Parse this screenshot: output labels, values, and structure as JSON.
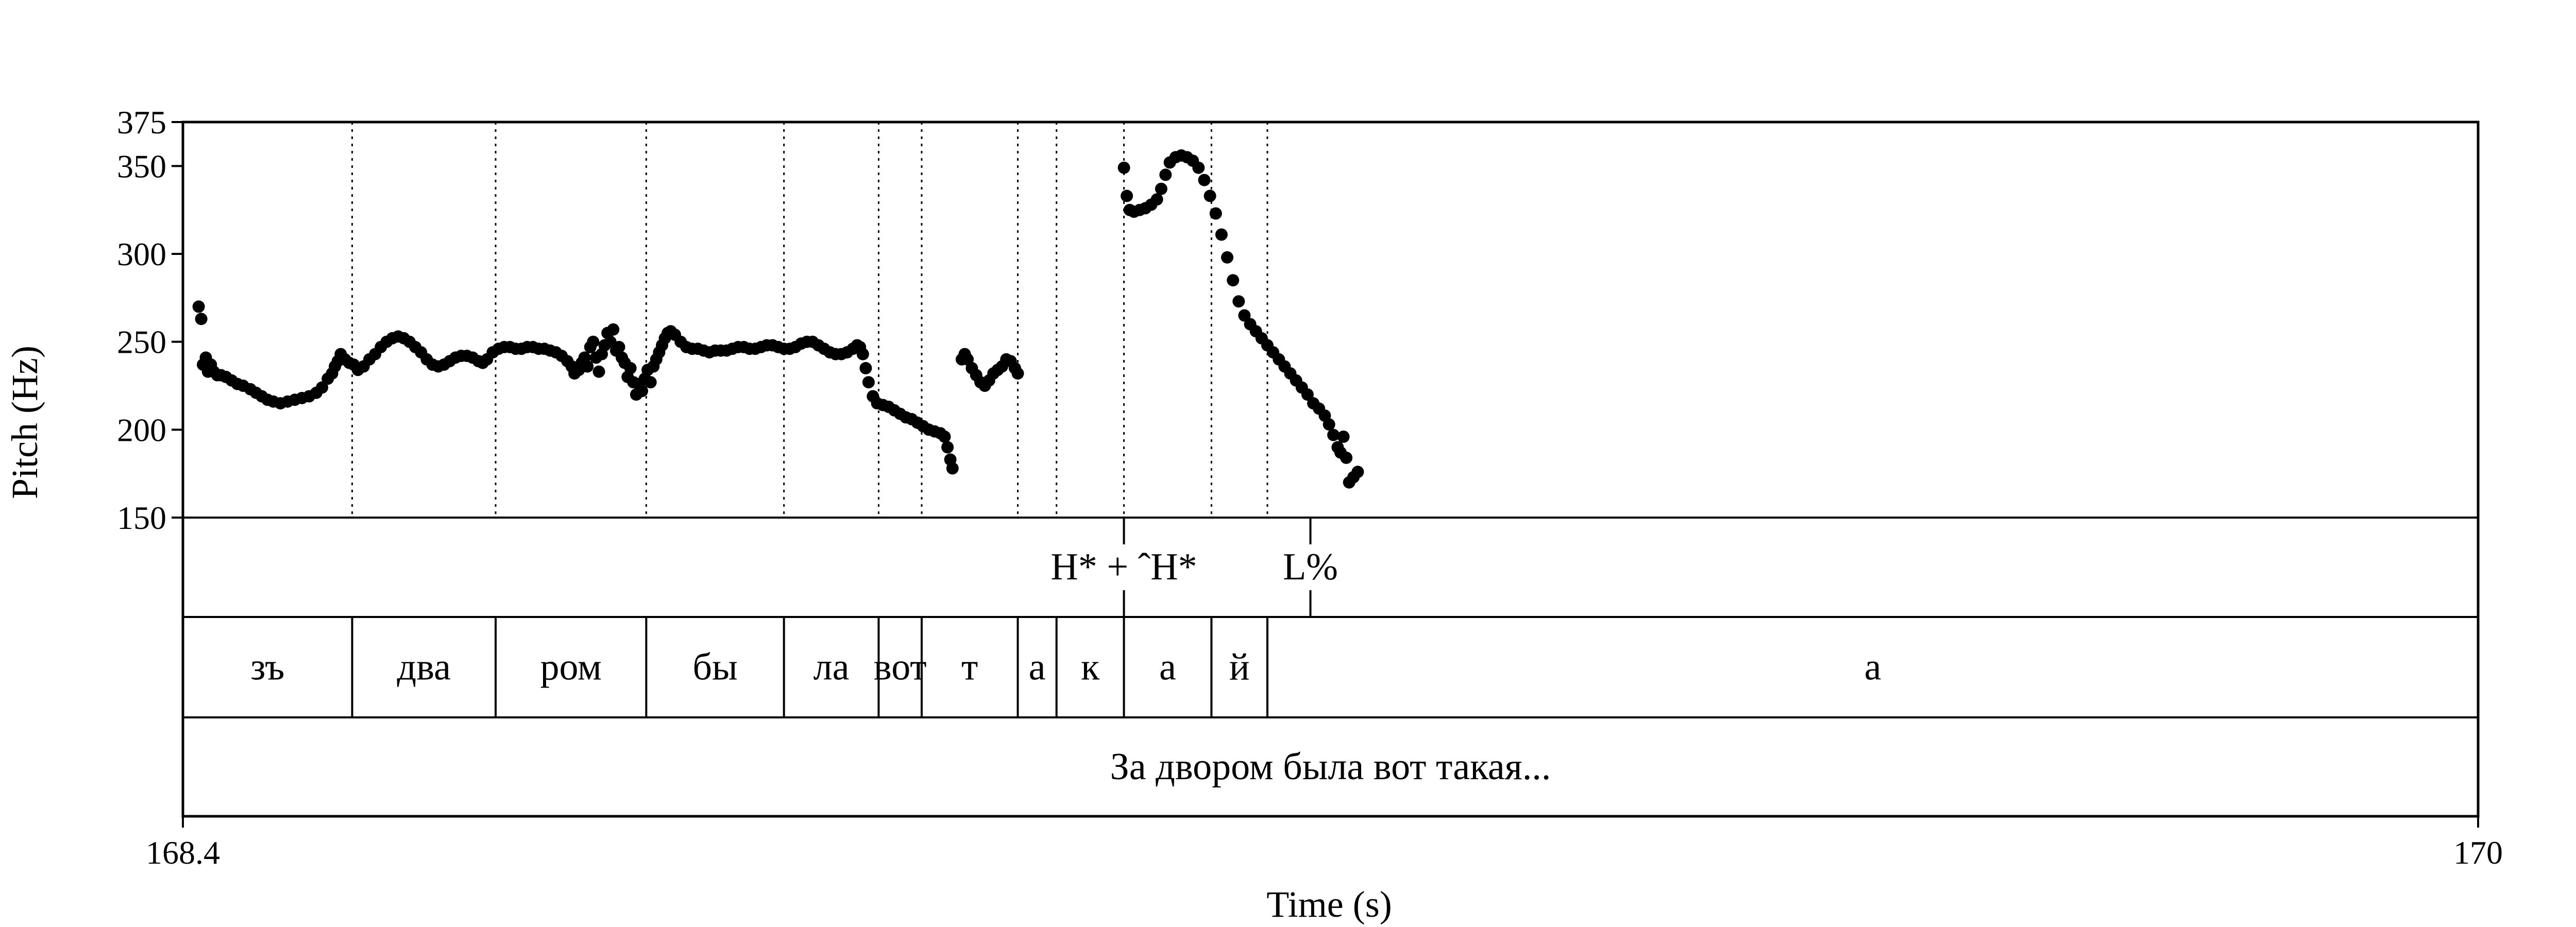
{
  "chart_data": {
    "type": "scatter",
    "xlabel": "Time (s)",
    "ylabel": "Pitch (Hz)",
    "xlim": [
      168.4,
      170
    ],
    "ylim": [
      150,
      375
    ],
    "x_ticks": [
      {
        "value": 168.4,
        "label": "168.4"
      },
      {
        "value": 170,
        "label": "170"
      }
    ],
    "y_ticks": [
      {
        "value": 150,
        "label": "150"
      },
      {
        "value": 200,
        "label": "200"
      },
      {
        "value": 250,
        "label": "250"
      },
      {
        "value": 300,
        "label": "300"
      },
      {
        "value": 350,
        "label": "350"
      },
      {
        "value": 375,
        "label": "375"
      }
    ],
    "pitch_track": [
      [
        168.411,
        270
      ],
      [
        168.4128,
        263
      ],
      [
        168.414,
        237
      ],
      [
        168.416,
        241
      ],
      [
        168.4175,
        233
      ],
      [
        168.4195,
        237
      ],
      [
        168.4215,
        233
      ],
      [
        168.424,
        231
      ],
      [
        168.4265,
        231
      ],
      [
        168.43,
        230
      ],
      [
        168.434,
        228
      ],
      [
        168.438,
        226
      ],
      [
        168.442,
        225
      ],
      [
        168.447,
        223
      ],
      [
        168.451,
        221
      ],
      [
        168.455,
        219
      ],
      [
        168.459,
        217
      ],
      [
        168.463,
        216
      ],
      [
        168.468,
        215
      ],
      [
        168.473,
        216
      ],
      [
        168.478,
        217
      ],
      [
        168.483,
        218
      ],
      [
        168.488,
        219
      ],
      [
        168.493,
        221
      ],
      [
        168.497,
        224
      ],
      [
        168.501,
        229
      ],
      [
        168.504,
        232
      ],
      [
        168.506,
        236
      ],
      [
        168.508,
        239
      ],
      [
        168.51,
        243
      ],
      [
        168.513,
        240
      ],
      [
        168.516,
        238
      ],
      [
        168.519,
        237
      ],
      [
        168.522,
        234
      ],
      [
        168.526,
        236
      ],
      [
        168.53,
        240
      ],
      [
        168.534,
        243
      ],
      [
        168.538,
        247
      ],
      [
        168.542,
        250
      ],
      [
        168.546,
        252
      ],
      [
        168.55,
        253
      ],
      [
        168.554,
        252
      ],
      [
        168.558,
        250
      ],
      [
        168.562,
        247
      ],
      [
        168.566,
        244
      ],
      [
        168.57,
        240
      ],
      [
        168.574,
        237
      ],
      [
        168.578,
        236
      ],
      [
        168.582,
        237
      ],
      [
        168.586,
        239
      ],
      [
        168.59,
        241
      ],
      [
        168.594,
        242
      ],
      [
        168.598,
        242
      ],
      [
        168.602,
        241
      ],
      [
        168.606,
        239
      ],
      [
        168.609,
        238
      ],
      [
        168.612,
        240
      ],
      [
        168.616,
        244
      ],
      [
        168.62,
        246
      ],
      [
        168.624,
        247
      ],
      [
        168.628,
        247
      ],
      [
        168.632,
        246
      ],
      [
        168.636,
        246
      ],
      [
        168.64,
        247
      ],
      [
        168.644,
        247
      ],
      [
        168.648,
        246
      ],
      [
        168.652,
        246
      ],
      [
        168.656,
        245
      ],
      [
        168.66,
        244
      ],
      [
        168.664,
        242
      ],
      [
        168.668,
        239
      ],
      [
        168.671,
        236
      ],
      [
        168.673,
        232
      ],
      [
        168.676,
        234
      ],
      [
        168.678,
        238
      ],
      [
        168.68,
        241
      ],
      [
        168.682,
        236
      ],
      [
        168.684,
        247
      ],
      [
        168.686,
        250
      ],
      [
        168.688,
        241
      ],
      [
        168.69,
        233
      ],
      [
        168.692,
        243
      ],
      [
        168.694,
        248
      ],
      [
        168.696,
        255
      ],
      [
        168.698,
        250
      ],
      [
        168.7,
        257
      ],
      [
        168.702,
        245
      ],
      [
        168.704,
        247
      ],
      [
        168.706,
        241
      ],
      [
        168.708,
        238
      ],
      [
        168.71,
        230
      ],
      [
        168.712,
        235
      ],
      [
        168.714,
        227
      ],
      [
        168.716,
        220
      ],
      [
        168.718,
        226
      ],
      [
        168.72,
        222
      ],
      [
        168.722,
        229
      ],
      [
        168.724,
        234
      ],
      [
        168.726,
        227
      ],
      [
        168.728,
        236
      ],
      [
        168.73,
        240
      ],
      [
        168.732,
        244
      ],
      [
        168.734,
        248
      ],
      [
        168.736,
        252
      ],
      [
        168.738,
        255
      ],
      [
        168.74,
        256
      ],
      [
        168.743,
        254
      ],
      [
        168.747,
        250
      ],
      [
        168.751,
        247
      ],
      [
        168.755,
        246
      ],
      [
        168.759,
        246
      ],
      [
        168.763,
        245
      ],
      [
        168.767,
        244
      ],
      [
        168.771,
        245
      ],
      [
        168.775,
        245
      ],
      [
        168.779,
        245
      ],
      [
        168.783,
        246
      ],
      [
        168.787,
        247
      ],
      [
        168.791,
        247
      ],
      [
        168.795,
        246
      ],
      [
        168.799,
        246
      ],
      [
        168.803,
        247
      ],
      [
        168.807,
        248
      ],
      [
        168.811,
        248
      ],
      [
        168.815,
        247
      ],
      [
        168.819,
        246
      ],
      [
        168.823,
        246
      ],
      [
        168.827,
        247
      ],
      [
        168.831,
        249
      ],
      [
        168.835,
        250
      ],
      [
        168.839,
        250
      ],
      [
        168.843,
        248
      ],
      [
        168.847,
        246
      ],
      [
        168.851,
        244
      ],
      [
        168.855,
        243
      ],
      [
        168.859,
        243
      ],
      [
        168.863,
        244
      ],
      [
        168.867,
        246
      ],
      [
        168.87,
        248
      ],
      [
        168.872,
        247
      ],
      [
        168.874,
        243
      ],
      [
        168.876,
        235
      ],
      [
        168.878,
        227
      ],
      [
        168.881,
        219
      ],
      [
        168.884,
        215
      ],
      [
        168.888,
        214
      ],
      [
        168.892,
        213
      ],
      [
        168.896,
        211
      ],
      [
        168.9,
        209
      ],
      [
        168.904,
        207
      ],
      [
        168.908,
        206
      ],
      [
        168.912,
        204
      ],
      [
        168.916,
        202
      ],
      [
        168.92,
        200
      ],
      [
        168.924,
        199
      ],
      [
        168.928,
        198
      ],
      [
        168.931,
        196
      ],
      [
        168.933,
        190
      ],
      [
        168.935,
        183
      ],
      [
        168.9365,
        178
      ],
      [
        168.943,
        240
      ],
      [
        168.945,
        243
      ],
      [
        168.947,
        240
      ],
      [
        168.95,
        235
      ],
      [
        168.953,
        231
      ],
      [
        168.956,
        227
      ],
      [
        168.959,
        225
      ],
      [
        168.962,
        228
      ],
      [
        168.965,
        232
      ],
      [
        168.968,
        234
      ],
      [
        168.971,
        236
      ],
      [
        168.974,
        240
      ],
      [
        168.977,
        239
      ],
      [
        168.98,
        235
      ],
      [
        168.982,
        232
      ],
      [
        169.056,
        349
      ],
      [
        169.058,
        333
      ],
      [
        169.06,
        325
      ],
      [
        169.063,
        324
      ],
      [
        169.067,
        325
      ],
      [
        169.071,
        326
      ],
      [
        169.075,
        328
      ],
      [
        169.079,
        331
      ],
      [
        169.082,
        337
      ],
      [
        169.085,
        345
      ],
      [
        169.088,
        352
      ],
      [
        169.092,
        355
      ],
      [
        169.096,
        356
      ],
      [
        169.1,
        355
      ],
      [
        169.104,
        353
      ],
      [
        169.108,
        349
      ],
      [
        169.112,
        342
      ],
      [
        169.116,
        333
      ],
      [
        169.12,
        323
      ],
      [
        169.124,
        311
      ],
      [
        169.128,
        298
      ],
      [
        169.132,
        285
      ],
      [
        169.136,
        273
      ],
      [
        169.14,
        265
      ],
      [
        169.144,
        260
      ],
      [
        169.148,
        256
      ],
      [
        169.152,
        252
      ],
      [
        169.156,
        248
      ],
      [
        169.16,
        244
      ],
      [
        169.164,
        240
      ],
      [
        169.168,
        236
      ],
      [
        169.172,
        232
      ],
      [
        169.176,
        228
      ],
      [
        169.18,
        224
      ],
      [
        169.184,
        220
      ],
      [
        169.188,
        215
      ],
      [
        169.192,
        212
      ],
      [
        169.196,
        208
      ],
      [
        169.199,
        203
      ],
      [
        169.202,
        197
      ],
      [
        169.205,
        190
      ],
      [
        169.207,
        187
      ],
      [
        169.209,
        196
      ],
      [
        169.211,
        184
      ],
      [
        169.213,
        170
      ],
      [
        169.216,
        173
      ],
      [
        169.219,
        176
      ]
    ],
    "tones": [
      {
        "time": 169.056,
        "label": "H* + ˆH*"
      },
      {
        "time": 169.186,
        "label": "L%"
      }
    ],
    "segments": [
      {
        "start": 168.4,
        "end": 168.518,
        "label": "зъ"
      },
      {
        "start": 168.518,
        "end": 168.618,
        "label": "два"
      },
      {
        "start": 168.618,
        "end": 168.723,
        "label": "ром"
      },
      {
        "start": 168.723,
        "end": 168.819,
        "label": "бы"
      },
      {
        "start": 168.819,
        "end": 168.885,
        "label": "ла"
      },
      {
        "start": 168.885,
        "end": 168.915,
        "label": "вот"
      },
      {
        "start": 168.915,
        "end": 168.982,
        "label": "т"
      },
      {
        "start": 168.982,
        "end": 169.009,
        "label": "а"
      },
      {
        "start": 169.009,
        "end": 169.056,
        "label": "к"
      },
      {
        "start": 169.056,
        "end": 169.117,
        "label": "а"
      },
      {
        "start": 169.117,
        "end": 169.156,
        "label": "й"
      },
      {
        "start": 169.156,
        "end": 170.0,
        "label": "а"
      }
    ],
    "sentence": "За двором была вот такая..."
  }
}
